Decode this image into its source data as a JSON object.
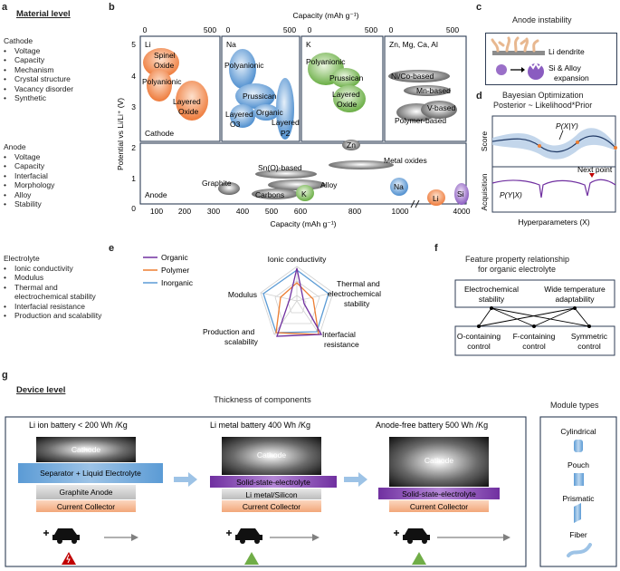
{
  "panel_letters": {
    "a": "a",
    "b": "b",
    "c": "c",
    "d": "d",
    "e": "e",
    "f": "f",
    "g": "g"
  },
  "material": {
    "title": "Material level",
    "cathode_header": "Cathode",
    "cathode_items": [
      "Voltage",
      "Capacity",
      "Mechanism",
      "Crystal structure",
      "Vacancy disorder",
      "Synthetic"
    ],
    "anode_header": "Anode",
    "anode_items": [
      "Voltage",
      "Capacity",
      "Interfacial",
      "Morphology",
      "Alloy",
      "Stability"
    ],
    "electrolyte_header": "Electrolyte",
    "electrolyte_items": [
      "Ionic conductivity",
      "Modulus",
      "Thermal and electrochemical stability",
      "Interfacial resistance",
      "Production and scalability"
    ]
  },
  "capacity_map": {
    "top_axis_label": "Capacity (mAh g⁻¹)",
    "bottom_axis_label": "Capacity (mAh g⁻¹)",
    "y_axis_label": "Potential vs Li/Li⁺ (V)",
    "top_ticks": [
      "0",
      "500",
      "0",
      "500",
      "0",
      "500",
      "0",
      "500"
    ],
    "y_ticks_top": [
      "5",
      "4",
      "3"
    ],
    "y_ticks_bottom": [
      "2",
      "1",
      "0"
    ],
    "bottom_ticks": [
      "100",
      "200",
      "300",
      "400",
      "500",
      "600",
      "800",
      "1000",
      "4000"
    ],
    "boxes": [
      {
        "ion": "Li",
        "region": "Cathode",
        "materials": [
          "Spinel Oxide",
          "Polyanionic",
          "Layered Oxide"
        ]
      },
      {
        "ion": "Na",
        "materials": [
          "Polyanionic",
          "Prussican",
          "Layered O3",
          "Organic",
          "Layered P2"
        ]
      },
      {
        "ion": "K",
        "materials": [
          "Polyanionic",
          "Prussican",
          "Layered Oxide"
        ]
      },
      {
        "ion": "Zn, Mg, Ca, Al",
        "materials": [
          "Ni/Co-based",
          "Mn-based",
          "V-based",
          "Polymer-based"
        ]
      }
    ],
    "anode_region": "Anode",
    "anode_materials": [
      "Graphite",
      "Sn(O)-based",
      "Metal oxides",
      "Alloy",
      "Carbons",
      "K",
      "Zn",
      "Na",
      "Li",
      "Si"
    ],
    "colors": {
      "li": "#f08040",
      "na": "#5b9bd5",
      "k": "#70ad47",
      "multi": "#7f7f7f"
    }
  },
  "anode_instability": {
    "title": "Anode instability",
    "dendrite_label": "Li dendrite",
    "alloy_label": "Si & Alloy expansion"
  },
  "bayesian": {
    "title": "Bayesian Optimization",
    "subtitle": "Posterior ~ Likelihood*Prior",
    "score_label": "Score",
    "acq_label": "Acquisition",
    "posterior_label": "P(X|Y)",
    "likelihood_label": "P(Y|X)",
    "next_point_label": "Next point",
    "x_label": "Hyperparameters (X)"
  },
  "radar": {
    "legend": [
      {
        "name": "Organic",
        "color": "#7030a0"
      },
      {
        "name": "Polymer",
        "color": "#ed7d31"
      },
      {
        "name": "Inorganic",
        "color": "#5b9bd5"
      }
    ],
    "axes": [
      "Ionic conductivity",
      "Thermal and electrochemical stability",
      "Interfacial resistance",
      "Production and scalability",
      "Modulus"
    ]
  },
  "feature": {
    "title": "Feature property relationship for organic electrolyte",
    "top_nodes": [
      "Electrochemical stability",
      "Wide temperature adaptability"
    ],
    "bottom_nodes": [
      "O-containing control",
      "F-containing control",
      "Symmetric control"
    ]
  },
  "device": {
    "title": "Device level",
    "thickness_title": "Thickness of components",
    "module_title": "Module types",
    "modules": [
      "Cylindrical",
      "Pouch",
      "Prismatic",
      "Fiber"
    ],
    "batteries": [
      {
        "title": "Li ion battery < 200 Wh /Kg",
        "layers": [
          "Cathode",
          "Separator + Liquid Electrolyte",
          "Graphite Anode",
          "Current Collector"
        ]
      },
      {
        "title": "Li metal battery 400 Wh /Kg",
        "layers": [
          "Cathode",
          "Solid-state-electrolyte",
          "Li metal/Silicon",
          "Current Collector"
        ]
      },
      {
        "title": "Anode-free battery 500 Wh /Kg",
        "layers": [
          "Cathode",
          "Solid-state-electrolyte",
          "Current Collector"
        ]
      }
    ]
  }
}
